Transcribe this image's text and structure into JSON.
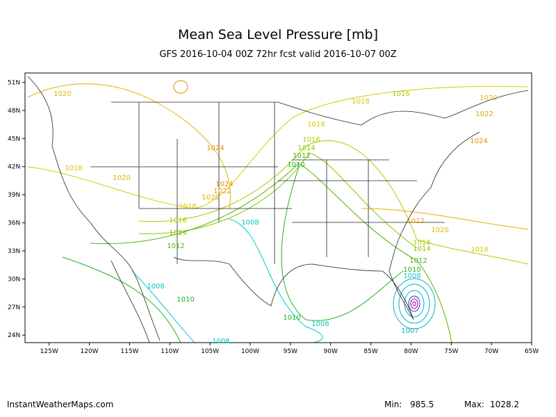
{
  "header": {
    "title": "Mean Sea Level Pressure [mb]",
    "subtitle": "GFS 2016-10-04 00Z 72hr fcst valid 2016-10-07 00Z"
  },
  "map": {
    "lon_range": [
      -128,
      -65
    ],
    "lat_range": [
      23.2,
      52
    ],
    "lon_ticks": [
      {
        "value": -125,
        "label": "125W"
      },
      {
        "value": -120,
        "label": "120W"
      },
      {
        "value": -115,
        "label": "115W"
      },
      {
        "value": -110,
        "label": "110W"
      },
      {
        "value": -105,
        "label": "105W"
      },
      {
        "value": -100,
        "label": "100W"
      },
      {
        "value": -95,
        "label": "95W"
      },
      {
        "value": -90,
        "label": "90W"
      },
      {
        "value": -85,
        "label": "85W"
      },
      {
        "value": -80,
        "label": "80W"
      },
      {
        "value": -75,
        "label": "75W"
      },
      {
        "value": -70,
        "label": "70W"
      },
      {
        "value": -65,
        "label": "65W"
      }
    ],
    "lat_ticks": [
      {
        "value": 51,
        "label": "51N"
      },
      {
        "value": 48,
        "label": "48N"
      },
      {
        "value": 45,
        "label": "45N"
      },
      {
        "value": 42,
        "label": "42N"
      },
      {
        "value": 39,
        "label": "39N"
      },
      {
        "value": 36,
        "label": "36N"
      },
      {
        "value": 33,
        "label": "33N"
      },
      {
        "value": 30,
        "label": "30N"
      },
      {
        "value": 27,
        "label": "27N"
      },
      {
        "value": 24,
        "label": "24N"
      }
    ],
    "contour_labels": [
      1020,
      1018,
      1016,
      1020,
      1022,
      1024,
      1018,
      1016,
      1014,
      1012,
      1010,
      1024,
      1018,
      1020,
      1024,
      1022,
      1020,
      1018,
      1016,
      1014,
      1012,
      1008,
      1022,
      1020,
      1018,
      1016,
      1014,
      1012,
      1010,
      1008,
      1008,
      1010,
      1010,
      1008,
      1008,
      1007
    ],
    "level_colors": {
      "1007": "#00b4c8",
      "1008": "#00c8c8",
      "1010": "#20b020",
      "1012": "#50b400",
      "1014": "#90c000",
      "1016": "#b4c800",
      "1018": "#d8c800",
      "1020": "#e0b400",
      "1022": "#e0a000",
      "1024": "#e09000"
    }
  },
  "footer": {
    "site": "InstantWeatherMaps.com",
    "min_label": "Min:",
    "min": 985.5,
    "max_label": "Max:",
    "max": 1028.2
  }
}
